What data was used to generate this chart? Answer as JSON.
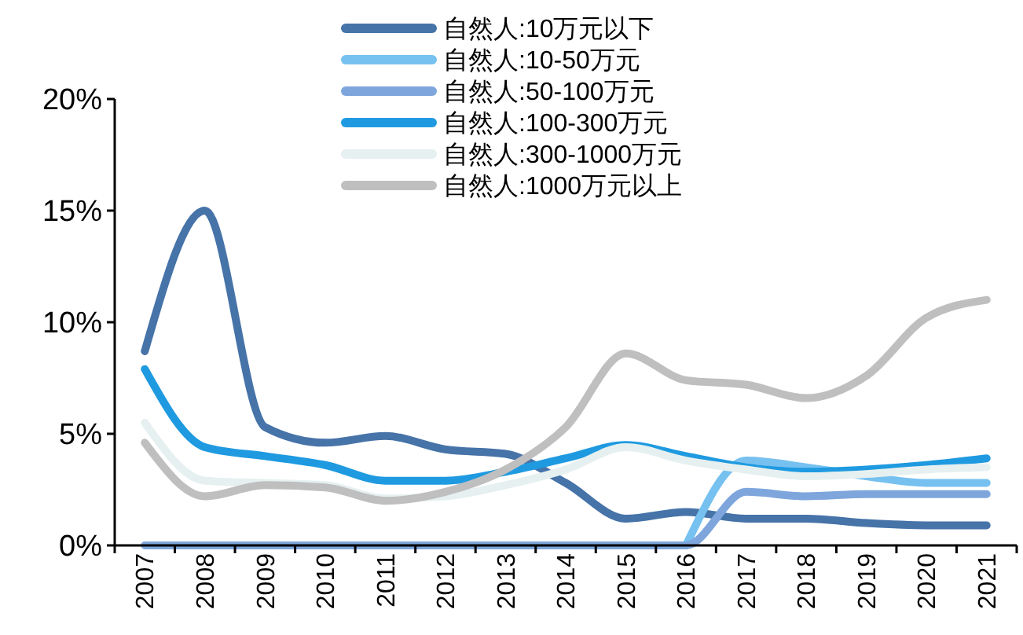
{
  "chart_data": {
    "type": "line",
    "categories": [
      "2007",
      "2008",
      "2009",
      "2010",
      "2011",
      "2012",
      "2013",
      "2014",
      "2015",
      "2016",
      "2017",
      "2018",
      "2019",
      "2020",
      "2021"
    ],
    "series": [
      {
        "name": "自然人:10万元以下",
        "color": "#4673a8",
        "values": [
          8.7,
          15.0,
          5.3,
          4.6,
          4.9,
          4.3,
          4.1,
          2.8,
          1.2,
          1.5,
          1.2,
          1.2,
          1.0,
          0.9,
          0.9
        ]
      },
      {
        "name": "自然人:10-50万元",
        "color": "#76c1f0",
        "values": [
          null,
          null,
          null,
          null,
          null,
          null,
          null,
          null,
          null,
          0,
          3.8,
          3.5,
          3.1,
          2.8,
          2.8
        ]
      },
      {
        "name": "自然人:50-100万元",
        "color": "#7ea6dc",
        "values": [
          0,
          0,
          0,
          0,
          0,
          0,
          0,
          0,
          0,
          0,
          2.4,
          2.2,
          2.3,
          2.3,
          2.3
        ]
      },
      {
        "name": "自然人:100-300万元",
        "color": "#1f9ae0",
        "values": [
          7.9,
          4.4,
          4.0,
          3.6,
          2.9,
          2.9,
          3.3,
          3.9,
          4.5,
          4.0,
          3.5,
          3.3,
          3.4,
          3.6,
          3.9
        ]
      },
      {
        "name": "自然人:300-1000万元",
        "color": "#e6f0f0",
        "values": [
          5.5,
          2.9,
          2.8,
          2.7,
          2.1,
          2.2,
          2.7,
          3.4,
          4.4,
          3.8,
          3.4,
          3.1,
          3.2,
          3.4,
          3.5
        ]
      },
      {
        "name": "自然人:1000万元以上",
        "color": "#bfbfbf",
        "values": [
          4.6,
          2.2,
          2.7,
          2.6,
          2.0,
          2.4,
          3.4,
          5.3,
          8.6,
          7.4,
          7.2,
          6.6,
          7.6,
          10.2,
          11.0
        ]
      }
    ],
    "ylim": [
      0,
      20
    ],
    "yticks": [
      {
        "value": 0,
        "label": "0%"
      },
      {
        "value": 5,
        "label": "5%"
      },
      {
        "value": 10,
        "label": "10%"
      },
      {
        "value": 15,
        "label": "15%"
      },
      {
        "value": 20,
        "label": "20%"
      }
    ],
    "grid": false,
    "legend": "top",
    "marker": "none",
    "line_style": "solid"
  }
}
